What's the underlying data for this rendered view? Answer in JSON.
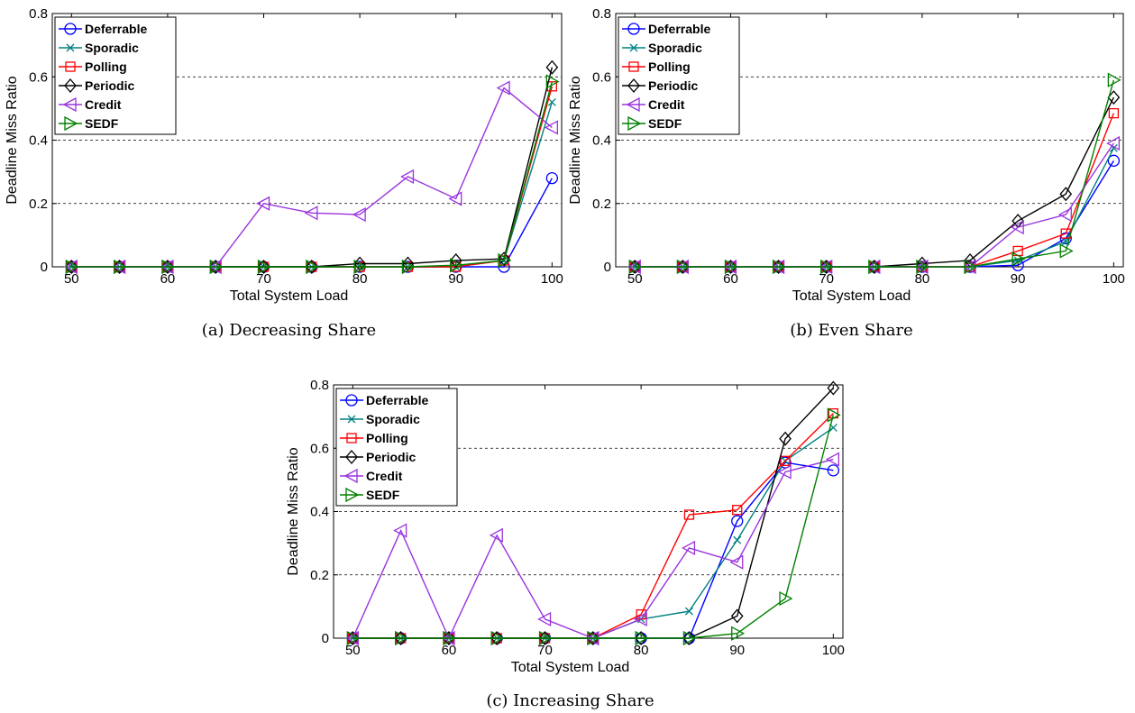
{
  "chart_data": [
    {
      "type": "line",
      "caption": "(a) Decreasing Share",
      "xlabel": "Total System Load",
      "ylabel": "Deadline Miss Ratio",
      "x": [
        50,
        55,
        60,
        65,
        70,
        75,
        80,
        85,
        90,
        95,
        100
      ],
      "xticks": [
        "50",
        "60",
        "70",
        "80",
        "90",
        "100"
      ],
      "yticks": [
        "0",
        "0.2",
        "0.4",
        "0.6",
        "0.8"
      ],
      "xlim": [
        48,
        101
      ],
      "ylim": [
        0,
        0.8
      ],
      "grid": "horizontal dashed",
      "legend_position": "top-left",
      "series": [
        {
          "name": "Deferrable",
          "color": "#0000ff",
          "marker": "circle",
          "values": [
            0,
            0,
            0,
            0,
            0,
            0,
            0,
            0,
            0,
            0,
            0.28
          ]
        },
        {
          "name": "Sporadic",
          "color": "#008080",
          "marker": "x",
          "values": [
            0,
            0,
            0,
            0,
            0,
            0,
            0,
            0,
            0,
            0.02,
            0.52
          ]
        },
        {
          "name": "Polling",
          "color": "#ff0000",
          "marker": "square",
          "values": [
            0,
            0,
            0,
            0,
            0,
            0,
            0,
            0,
            0,
            0.02,
            0.57
          ]
        },
        {
          "name": "Periodic",
          "color": "#000000",
          "marker": "diamond",
          "values": [
            0,
            0,
            0,
            0,
            0,
            0,
            0.01,
            0.01,
            0.02,
            0.025,
            0.63
          ]
        },
        {
          "name": "Credit",
          "color": "#9933dd",
          "marker": "triangle-left",
          "values": [
            0,
            0,
            0,
            0,
            0.2,
            0.17,
            0.165,
            0.285,
            0.215,
            0.565,
            0.44
          ]
        },
        {
          "name": "SEDF",
          "color": "#008000",
          "marker": "triangle-right",
          "values": [
            0,
            0,
            0,
            0,
            0,
            0,
            0,
            0,
            0.005,
            0.02,
            0.585
          ]
        }
      ]
    },
    {
      "type": "line",
      "caption": "(b) Even Share",
      "xlabel": "Total System Load",
      "ylabel": "Deadline Miss Ratio",
      "x": [
        50,
        55,
        60,
        65,
        70,
        75,
        80,
        85,
        90,
        95,
        100
      ],
      "xticks": [
        "50",
        "60",
        "70",
        "80",
        "90",
        "100"
      ],
      "yticks": [
        "0",
        "0.2",
        "0.4",
        "0.6",
        "0.8"
      ],
      "xlim": [
        48,
        101
      ],
      "ylim": [
        0,
        0.8
      ],
      "grid": "horizontal dashed",
      "legend_position": "top-left",
      "series": [
        {
          "name": "Deferrable",
          "color": "#0000ff",
          "marker": "circle",
          "values": [
            0,
            0,
            0,
            0,
            0,
            0,
            0,
            0,
            0.005,
            0.09,
            0.335
          ]
        },
        {
          "name": "Sporadic",
          "color": "#008080",
          "marker": "x",
          "values": [
            0,
            0,
            0,
            0,
            0,
            0,
            0,
            0,
            0.02,
            0.08,
            0.375
          ]
        },
        {
          "name": "Polling",
          "color": "#ff0000",
          "marker": "square",
          "values": [
            0,
            0,
            0,
            0,
            0,
            0,
            0,
            0,
            0.05,
            0.105,
            0.485
          ]
        },
        {
          "name": "Periodic",
          "color": "#000000",
          "marker": "diamond",
          "values": [
            0,
            0,
            0,
            0,
            0,
            0,
            0.01,
            0.02,
            0.145,
            0.23,
            0.535
          ]
        },
        {
          "name": "Credit",
          "color": "#9933dd",
          "marker": "triangle-left",
          "values": [
            0,
            0,
            0,
            0,
            0,
            0,
            0,
            0,
            0.125,
            0.165,
            0.39
          ]
        },
        {
          "name": "SEDF",
          "color": "#008000",
          "marker": "triangle-right",
          "values": [
            0,
            0,
            0,
            0,
            0,
            0,
            0,
            0,
            0.025,
            0.05,
            0.59
          ]
        }
      ]
    },
    {
      "type": "line",
      "caption": "(c) Increasing Share",
      "xlabel": "Total System Load",
      "ylabel": "Deadline Miss Ratio",
      "x": [
        50,
        55,
        60,
        65,
        70,
        75,
        80,
        85,
        90,
        95,
        100
      ],
      "xticks": [
        "50",
        "60",
        "70",
        "80",
        "90",
        "100"
      ],
      "yticks": [
        "0",
        "0.2",
        "0.4",
        "0.6",
        "0.8"
      ],
      "xlim": [
        48,
        101
      ],
      "ylim": [
        0,
        0.8
      ],
      "grid": "horizontal dashed",
      "legend_position": "top-left",
      "series": [
        {
          "name": "Deferrable",
          "color": "#0000ff",
          "marker": "circle",
          "values": [
            0,
            0,
            0,
            0,
            0,
            0,
            0,
            0,
            0.37,
            0.555,
            0.53
          ]
        },
        {
          "name": "Sporadic",
          "color": "#008080",
          "marker": "x",
          "values": [
            0,
            0,
            0,
            0,
            0,
            0,
            0.06,
            0.085,
            0.31,
            0.56,
            0.665
          ]
        },
        {
          "name": "Polling",
          "color": "#ff0000",
          "marker": "square",
          "values": [
            0,
            0,
            0,
            0,
            0,
            0,
            0.075,
            0.39,
            0.405,
            0.56,
            0.71
          ]
        },
        {
          "name": "Periodic",
          "color": "#000000",
          "marker": "diamond",
          "values": [
            0,
            0,
            0,
            0,
            0,
            0,
            0,
            0,
            0.07,
            0.63,
            0.79
          ]
        },
        {
          "name": "Credit",
          "color": "#9933dd",
          "marker": "triangle-left",
          "values": [
            0,
            0.34,
            0,
            0.325,
            0.06,
            0,
            0.06,
            0.285,
            0.24,
            0.525,
            0.565
          ]
        },
        {
          "name": "SEDF",
          "color": "#008000",
          "marker": "triangle-right",
          "values": [
            0,
            0,
            0,
            0,
            0,
            0,
            0,
            0,
            0.015,
            0.125,
            0.705
          ]
        }
      ]
    }
  ]
}
